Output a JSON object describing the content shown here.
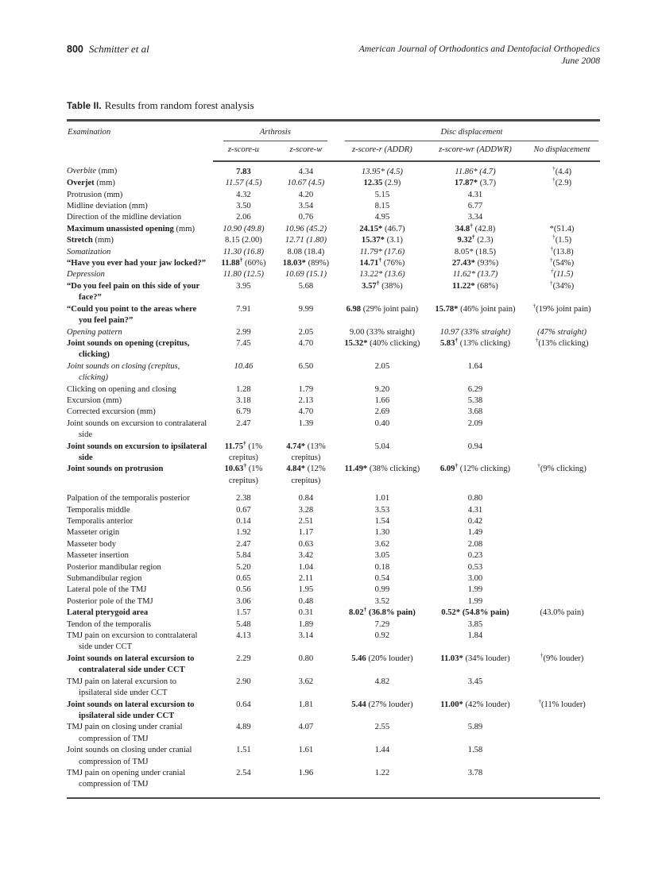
{
  "page_header": {
    "page_number": "800",
    "authors": "Schmitter et al",
    "journal_line1": "American Journal of Orthodontics and Dentofacial Orthopedics",
    "journal_line2": "June 2008"
  },
  "table": {
    "label": "Table II.",
    "title": "Results from random forest analysis",
    "exam_header": "Examination",
    "groups": [
      {
        "label": "Arthrosis",
        "span": 2
      },
      {
        "label": "Disc displacement",
        "span": 3
      }
    ],
    "columns": [
      "z-score-u",
      "z-score-w",
      "z-score-r (ADDR)",
      "z-score-wr (ADDWR)",
      "No displacement"
    ],
    "rows": [
      {
        "label": "<i>Overbite</i> (mm)",
        "cells": [
          "<b>7.83</b>",
          "4.34",
          "<i>13.95* (4.5)</i>",
          "<i>11.86* (4.7)</i>",
          "<sup>†</sup>(4.4)"
        ]
      },
      {
        "label": "<b>Overjet</b> (mm)",
        "cells": [
          "<i>11.57 (4.5)</i>",
          "<i>10.67 (4.5)</i>",
          "<b>12.35</b> (2.9)",
          "<b>17.87*</b> (3.7)",
          "<sup>†</sup>(2.9)"
        ]
      },
      {
        "label": "Protrusion (mm)",
        "cells": [
          "4.32",
          "4.20",
          "5.15",
          "4.31",
          ""
        ]
      },
      {
        "label": "Midline deviation (mm)",
        "cells": [
          "3.50",
          "3.54",
          "8.15",
          "6.77",
          ""
        ]
      },
      {
        "label": "Direction of the midline deviation",
        "cells": [
          "2.06",
          "0.76",
          "4.95",
          "3.34",
          ""
        ]
      },
      {
        "label": "<b>Maximum unassisted opening</b> (mm)",
        "cells": [
          "<i>10.90 (49.8)</i>",
          "<i>10.96 (45.2)</i>",
          "<b>24.15*</b> (46.7)",
          "<b>34.8<sup>†</sup></b> (42.8)",
          "*(51.4)"
        ]
      },
      {
        "label": "<b>Stretch</b> (mm)",
        "cells": [
          "8.15 (2.00)",
          "<i>12.71 (1.80)</i>",
          "<b>15.37*</b> (3.1)",
          "<b>9.32<sup>†</sup></b> (2.3)",
          "<sup>†</sup>(1.5)"
        ]
      },
      {
        "label": "<i>Somatization</i>",
        "cells": [
          "<i>11.30 (16.8)</i>",
          "8.08 (18.4)",
          "<i>11.79* (17.6)</i>",
          "8.05* (18.5)",
          "<sup>†</sup>(13.8)"
        ]
      },
      {
        "label": "<b>“Have you ever had your jaw locked?”</b>",
        "cells": [
          "<b>11.88<sup>†</sup></b> (60%)",
          "<b>18.03*</b> (89%)",
          "<b>14.71<sup>†</sup></b> (76%)",
          "<b>27.43*</b> (93%)",
          "<sup>†</sup>(54%)"
        ]
      },
      {
        "label": "<i>Depression</i>",
        "cells": [
          "<i>11.80 (12.5)</i>",
          "<i>10.69 (15.1)</i>",
          "<i>13.22* (13.6)</i>",
          "<i>11.62* (13.7)</i>",
          "<i><sup>†</sup>(11.5)</i>"
        ]
      },
      {
        "label": "<b>“Do you feel pain on this side of your face?”</b>",
        "cells": [
          "3.95",
          "5.68",
          "<b>3.57<sup>†</sup></b> (38%)",
          "<b>11.22*</b> (68%)",
          "<sup>†</sup>(34%)"
        ]
      },
      {
        "label": "<b>“Could you point to the areas where you feel pain?”</b>",
        "cells": [
          "7.91",
          "9.99",
          "<b>6.98</b> (29% joint pain)",
          "<b>15.78*</b> (46% joint pain)",
          "<sup>†</sup>(19% joint pain)"
        ]
      },
      {
        "label": "<i>Opening pattern</i>",
        "cells": [
          "2.99",
          "2.05",
          "9.00 (33% straight)",
          "<i>10.97 (33% straight)</i>",
          "<i>(47% straight)</i>"
        ]
      },
      {
        "label": "<b>Joint sounds on opening (crepitus, clicking)</b>",
        "cells": [
          "7.45",
          "4.70",
          "<b>15.32*</b> (40% clicking)",
          "<b>5.83<sup>†</sup></b> (13% clicking)",
          "<sup>†</sup>(13% clicking)"
        ]
      },
      {
        "label": "<i>Joint sounds on closing (crepitus, clicking)</i>",
        "cells": [
          "<i>10.46</i>",
          "6.50",
          "2.05",
          "1.64",
          ""
        ]
      },
      {
        "label": "Clicking on opening and closing",
        "cells": [
          "1.28",
          "1.79",
          "9.20",
          "6.29",
          ""
        ]
      },
      {
        "label": "Excursion (mm)",
        "cells": [
          "3.18",
          "2.13",
          "1.66",
          "5.38",
          ""
        ]
      },
      {
        "label": "Corrected excursion (mm)",
        "cells": [
          "6.79",
          "4.70",
          "2.69",
          "3.68",
          ""
        ]
      },
      {
        "label": "Joint sounds on excursion to contralateral side",
        "cells": [
          "2.47",
          "1.39",
          "0.40",
          "2.09",
          ""
        ]
      },
      {
        "label": "<b>Joint sounds on excursion to ipsilateral side</b>",
        "cells": [
          "<b>11.75<sup>†</sup></b> (1% crepitus)",
          "<b>4.74*</b> (13% crepitus)",
          "5.04",
          "0.94",
          ""
        ]
      },
      {
        "label": "<b>Joint sounds on protrusion</b>",
        "cells": [
          "<b>10.63<sup>†</sup></b> (1% crepitus)",
          "<b>4.84*</b> (12% crepitus)",
          "<b>11.49*</b> (38% clicking)",
          "<b>6.09<sup>†</sup></b> (12% clicking)",
          "<sup>†</sup>(9% clicking)"
        ]
      },
      {
        "label": "Palpation of the temporalis posterior",
        "gap": true,
        "cells": [
          "2.38",
          "0.84",
          "1.01",
          "0.80",
          ""
        ]
      },
      {
        "label": "Temporalis middle",
        "cells": [
          "0.67",
          "3.28",
          "3.53",
          "4.31",
          ""
        ]
      },
      {
        "label": "Temporalis anterior",
        "cells": [
          "0.14",
          "2.51",
          "1.54",
          "0.42",
          ""
        ]
      },
      {
        "label": "Masseter origin",
        "cells": [
          "1.92",
          "1.17",
          "1.30",
          "1.49",
          ""
        ]
      },
      {
        "label": "Masseter body",
        "cells": [
          "2.47",
          "0.63",
          "3.62",
          "2.08",
          ""
        ]
      },
      {
        "label": "Masseter insertion",
        "cells": [
          "5.84",
          "3.42",
          "3.05",
          "0.23",
          ""
        ]
      },
      {
        "label": "Posterior mandibular region",
        "cells": [
          "5.20",
          "1.04",
          "0.18",
          "0.53",
          ""
        ]
      },
      {
        "label": "Submandibular region",
        "cells": [
          "0.65",
          "2.11",
          "0.54",
          "3.00",
          ""
        ]
      },
      {
        "label": "Lateral pole of the TMJ",
        "cells": [
          "0.56",
          "1.95",
          "0.99",
          "1.99",
          ""
        ]
      },
      {
        "label": "Posterior pole of the TMJ",
        "cells": [
          "3.06",
          "0.48",
          "3.52",
          "1.99",
          ""
        ]
      },
      {
        "label": "<b>Lateral pterygoid area</b>",
        "cells": [
          "1.57",
          "0.31",
          "<b>8.02<sup>†</sup> (36.8% pain)</b>",
          "<b>0.52* (54.8% pain)</b>",
          "(43.0% pain)"
        ]
      },
      {
        "label": "Tendon of the temporalis",
        "cells": [
          "5.48",
          "1.89",
          "7.29",
          "3.85",
          ""
        ]
      },
      {
        "label": "TMJ pain on excursion to contralateral side under CCT",
        "cells": [
          "4.13",
          "3.14",
          "0.92",
          "1.84",
          ""
        ]
      },
      {
        "label": "<b>Joint sounds on lateral excursion to contralateral side under CCT</b>",
        "cells": [
          "2.29",
          "0.80",
          "<b>5.46</b> (20% louder)",
          "<b>11.03*</b> (34% louder)",
          "<sup>†</sup>(9% louder)"
        ]
      },
      {
        "label": "TMJ pain on lateral excursion to ipsilateral side under CCT",
        "cells": [
          "2.90",
          "3.62",
          "4.82",
          "3.45",
          ""
        ]
      },
      {
        "label": "<b>Joint sounds on lateral excursion to ipsilateral side under CCT</b>",
        "cells": [
          "0.64",
          "1.81",
          "<b>5.44</b> (27% louder)",
          "<b>11.00*</b> (42% louder)",
          "<sup>†</sup>(11% louder)"
        ]
      },
      {
        "label": "TMJ pain on closing under cranial compression of TMJ",
        "cells": [
          "4.89",
          "4.07",
          "2.55",
          "5.89",
          ""
        ]
      },
      {
        "label": "Joint sounds on closing under cranial compression of TMJ",
        "cells": [
          "1.51",
          "1.61",
          "1.44",
          "1.58",
          ""
        ]
      },
      {
        "label": "TMJ pain on opening under cranial compression of TMJ",
        "cells": [
          "2.54",
          "1.96",
          "1.22",
          "3.78",
          ""
        ]
      }
    ]
  }
}
